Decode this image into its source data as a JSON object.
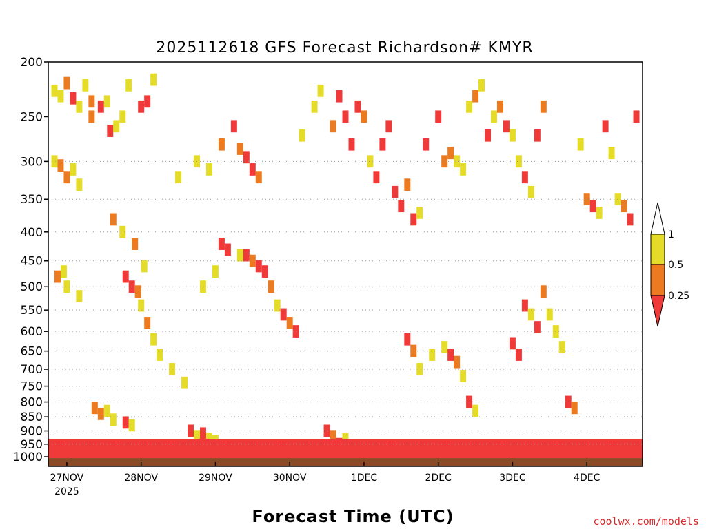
{
  "chart_data": {
    "type": "heatmap",
    "title": "2025112618 GFS Forecast Richardson# KMYR",
    "xlabel": "Forecast Time (UTC)",
    "ylabel": "",
    "y_scale": "log",
    "ylim": [
      1040,
      200
    ],
    "yticks": [
      200,
      250,
      300,
      350,
      400,
      450,
      500,
      550,
      600,
      650,
      700,
      750,
      800,
      850,
      900,
      950,
      1000
    ],
    "gridlines_at": [
      300,
      350,
      400,
      450,
      500,
      550,
      600,
      650,
      700,
      750,
      800,
      850,
      900,
      950
    ],
    "xticks": [
      {
        "label": "27NOV",
        "sub": "2025",
        "hour": 6
      },
      {
        "label": "28NOV",
        "hour": 30
      },
      {
        "label": "29NOV",
        "hour": 54
      },
      {
        "label": "30NOV",
        "hour": 78
      },
      {
        "label": "1DEC",
        "hour": 102
      },
      {
        "label": "2DEC",
        "hour": 126
      },
      {
        "label": "3DEC",
        "hour": 150
      },
      {
        "label": "4DEC",
        "hour": 174
      }
    ],
    "xlim": [
      0,
      192
    ],
    "colorbar": {
      "levels": [
        "1",
        "0.5",
        "0.25"
      ],
      "bins": [
        {
          "range": "0.5-1",
          "color": "#e5dc2a"
        },
        {
          "range": "0.25-0.5",
          "color": "#ec7a20"
        },
        {
          "range": "<0.25",
          "color": "#f03a3a"
        }
      ]
    },
    "legend_position": "right",
    "ground_color": "#8b4a26",
    "cells": [
      [
        2,
        225,
        0.6
      ],
      [
        4,
        230,
        0.8
      ],
      [
        6,
        218,
        0.35
      ],
      [
        8,
        232,
        0.2
      ],
      [
        10,
        240,
        0.6
      ],
      [
        12,
        220,
        0.7
      ],
      [
        14,
        235,
        0.3
      ],
      [
        2,
        300,
        0.7
      ],
      [
        4,
        305,
        0.3
      ],
      [
        6,
        320,
        0.35
      ],
      [
        8,
        310,
        0.6
      ],
      [
        10,
        330,
        0.7
      ],
      [
        3,
        480,
        0.35
      ],
      [
        5,
        470,
        0.6
      ],
      [
        6,
        500,
        0.7
      ],
      [
        10,
        520,
        0.6
      ],
      [
        14,
        250,
        0.35
      ],
      [
        17,
        240,
        0.2
      ],
      [
        19,
        235,
        0.8
      ],
      [
        20,
        265,
        0.2
      ],
      [
        22,
        260,
        0.6
      ],
      [
        24,
        250,
        0.6
      ],
      [
        26,
        220,
        0.8
      ],
      [
        21,
        380,
        0.35
      ],
      [
        24,
        400,
        0.6
      ],
      [
        28,
        420,
        0.35
      ],
      [
        25,
        480,
        0.2
      ],
      [
        27,
        500,
        0.2
      ],
      [
        29,
        510,
        0.35
      ],
      [
        31,
        460,
        0.6
      ],
      [
        30,
        240,
        0.2
      ],
      [
        32,
        235,
        0.2
      ],
      [
        34,
        215,
        0.7
      ],
      [
        30,
        540,
        0.6
      ],
      [
        32,
        580,
        0.35
      ],
      [
        34,
        620,
        0.6
      ],
      [
        36,
        660,
        0.7
      ],
      [
        40,
        700,
        0.6
      ],
      [
        44,
        740,
        0.7
      ],
      [
        15,
        820,
        0.35
      ],
      [
        17,
        840,
        0.35
      ],
      [
        19,
        830,
        0.6
      ],
      [
        21,
        860,
        0.6
      ],
      [
        25,
        870,
        0.2
      ],
      [
        27,
        880,
        0.6
      ],
      [
        42,
        320,
        0.6
      ],
      [
        48,
        300,
        0.8
      ],
      [
        52,
        310,
        0.6
      ],
      [
        56,
        280,
        0.35
      ],
      [
        60,
        260,
        0.2
      ],
      [
        62,
        285,
        0.35
      ],
      [
        64,
        295,
        0.2
      ],
      [
        66,
        310,
        0.2
      ],
      [
        68,
        320,
        0.35
      ],
      [
        62,
        440,
        0.6
      ],
      [
        64,
        440,
        0.2
      ],
      [
        66,
        450,
        0.35
      ],
      [
        68,
        460,
        0.2
      ],
      [
        70,
        470,
        0.2
      ],
      [
        72,
        500,
        0.35
      ],
      [
        74,
        540,
        0.6
      ],
      [
        76,
        560,
        0.2
      ],
      [
        78,
        580,
        0.35
      ],
      [
        80,
        600,
        0.2
      ],
      [
        56,
        420,
        0.2
      ],
      [
        58,
        430,
        0.2
      ],
      [
        54,
        470,
        0.6
      ],
      [
        50,
        500,
        0.7
      ],
      [
        46,
        900,
        0.2
      ],
      [
        48,
        920,
        0.6
      ],
      [
        50,
        910,
        0.2
      ],
      [
        52,
        930,
        0.6
      ],
      [
        54,
        940,
        0.6
      ],
      [
        82,
        270,
        0.6
      ],
      [
        86,
        240,
        0.8
      ],
      [
        88,
        225,
        0.6
      ],
      [
        92,
        260,
        0.35
      ],
      [
        94,
        230,
        0.2
      ],
      [
        96,
        250,
        0.2
      ],
      [
        98,
        280,
        0.2
      ],
      [
        100,
        240,
        0.2
      ],
      [
        102,
        250,
        0.35
      ],
      [
        104,
        300,
        0.6
      ],
      [
        106,
        320,
        0.2
      ],
      [
        108,
        280,
        0.2
      ],
      [
        110,
        260,
        0.2
      ],
      [
        112,
        340,
        0.2
      ],
      [
        114,
        360,
        0.2
      ],
      [
        116,
        330,
        0.35
      ],
      [
        118,
        380,
        0.2
      ],
      [
        120,
        370,
        0.6
      ],
      [
        122,
        280,
        0.2
      ],
      [
        116,
        620,
        0.2
      ],
      [
        118,
        650,
        0.35
      ],
      [
        120,
        700,
        0.6
      ],
      [
        124,
        660,
        0.6
      ],
      [
        90,
        900,
        0.2
      ],
      [
        92,
        920,
        0.35
      ],
      [
        94,
        950,
        0.2
      ],
      [
        96,
        930,
        0.6
      ],
      [
        126,
        250,
        0.2
      ],
      [
        128,
        300,
        0.35
      ],
      [
        130,
        290,
        0.35
      ],
      [
        132,
        300,
        0.6
      ],
      [
        134,
        310,
        0.6
      ],
      [
        136,
        240,
        0.8
      ],
      [
        138,
        230,
        0.35
      ],
      [
        140,
        220,
        0.8
      ],
      [
        142,
        270,
        0.2
      ],
      [
        144,
        250,
        0.6
      ],
      [
        146,
        240,
        0.35
      ],
      [
        148,
        260,
        0.2
      ],
      [
        150,
        270,
        0.6
      ],
      [
        152,
        300,
        0.8
      ],
      [
        154,
        320,
        0.2
      ],
      [
        156,
        340,
        0.6
      ],
      [
        158,
        270,
        0.2
      ],
      [
        160,
        240,
        0.35
      ],
      [
        128,
        640,
        0.6
      ],
      [
        130,
        660,
        0.2
      ],
      [
        132,
        680,
        0.35
      ],
      [
        134,
        720,
        0.6
      ],
      [
        136,
        800,
        0.2
      ],
      [
        138,
        830,
        0.6
      ],
      [
        150,
        630,
        0.2
      ],
      [
        152,
        660,
        0.2
      ],
      [
        154,
        540,
        0.2
      ],
      [
        156,
        560,
        0.6
      ],
      [
        158,
        590,
        0.2
      ],
      [
        160,
        510,
        0.35
      ],
      [
        162,
        560,
        0.6
      ],
      [
        164,
        600,
        0.6
      ],
      [
        166,
        640,
        0.7
      ],
      [
        168,
        800,
        0.2
      ],
      [
        170,
        820,
        0.35
      ],
      [
        172,
        280,
        0.6
      ],
      [
        174,
        350,
        0.35
      ],
      [
        176,
        360,
        0.2
      ],
      [
        178,
        370,
        0.6
      ],
      [
        180,
        260,
        0.2
      ],
      [
        182,
        290,
        0.6
      ],
      [
        184,
        350,
        0.6
      ],
      [
        186,
        360,
        0.35
      ],
      [
        188,
        380,
        0.2
      ],
      [
        190,
        250,
        0.2
      ]
    ],
    "surface_layer": {
      "description_pressure_top_hpa": 930,
      "value": 0.2
    }
  },
  "watermark": "coolwx.com/models"
}
